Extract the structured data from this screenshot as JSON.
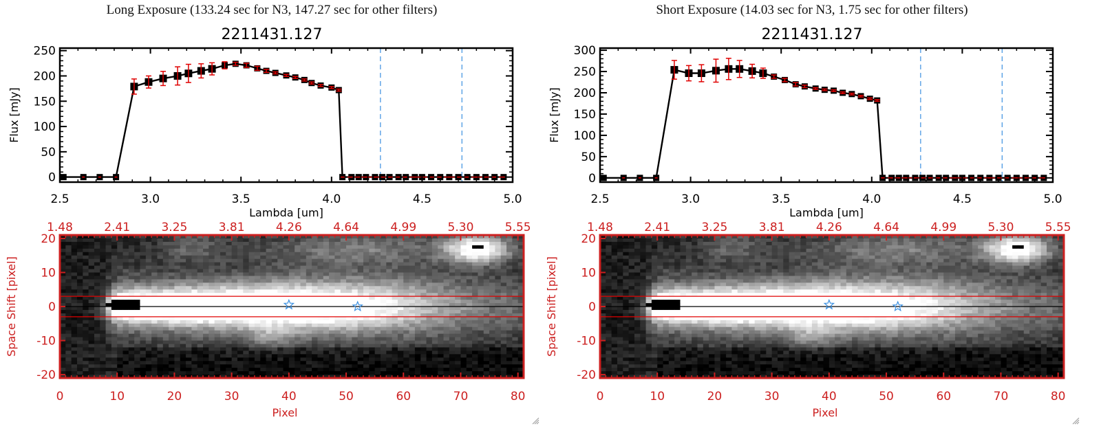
{
  "colors": {
    "axis": "#000000",
    "error_bar": "#e00000",
    "marker": "#000000",
    "filter_line": "#3a8fe0",
    "zero_line": "#e00000",
    "image_axis": "#cc2020",
    "aperture": "#e00000",
    "star": "#3a8fe0"
  },
  "chart_data": [
    {
      "type": "line",
      "panel": "left",
      "title": "Long Exposure (133.24 sec for N3, 147.27 sec for other filters)",
      "subtitle": "2211431.127",
      "xlabel": "Lambda [um]",
      "ylabel": "Flux [mJy]",
      "xlim": [
        2.5,
        5.0
      ],
      "ylim": [
        -10,
        255
      ],
      "xticks": [
        "2.5",
        "3.0",
        "3.5",
        "4.0",
        "4.5",
        "5.0"
      ],
      "xtick_values": [
        2.5,
        3.0,
        3.5,
        4.0,
        4.5,
        5.0
      ],
      "yticks": [
        "0",
        "50",
        "100",
        "150",
        "200",
        "250"
      ],
      "ytick_values": [
        0,
        50,
        100,
        150,
        200,
        250
      ],
      "filter_lines": [
        4.27,
        4.72
      ],
      "zero_line": 0,
      "series": [
        {
          "name": "flux",
          "x": [
            2.52,
            2.63,
            2.72,
            2.81,
            2.91,
            2.99,
            3.07,
            3.15,
            3.21,
            3.28,
            3.34,
            3.41,
            3.47,
            3.53,
            3.59,
            3.64,
            3.69,
            3.75,
            3.8,
            3.85,
            3.89,
            3.94,
            4.0,
            4.04,
            4.06,
            4.11,
            4.15,
            4.19,
            4.24,
            4.28,
            4.32,
            4.37,
            4.41,
            4.46,
            4.5,
            4.55,
            4.6,
            4.65,
            4.7,
            4.75,
            4.8,
            4.85,
            4.9,
            4.95
          ],
          "y": [
            0,
            0,
            0,
            0,
            179,
            188,
            195,
            200,
            205,
            210,
            214,
            221,
            224,
            221,
            215,
            210,
            206,
            201,
            197,
            192,
            186,
            181,
            177,
            172,
            0,
            0,
            0,
            0,
            0,
            0,
            0,
            0,
            0,
            0,
            0,
            0,
            0,
            0,
            0,
            0,
            0,
            0,
            0,
            0
          ],
          "err": [
            0,
            0,
            0,
            0,
            15,
            12,
            14,
            18,
            18,
            14,
            12,
            7,
            3,
            4,
            4,
            3,
            2,
            2,
            2,
            2,
            2,
            2,
            2,
            2,
            0,
            0,
            0,
            0,
            0,
            0,
            0,
            0,
            0,
            0,
            0,
            0,
            0,
            0,
            0,
            0,
            0,
            0,
            0,
            0
          ]
        }
      ]
    },
    {
      "type": "line",
      "panel": "right",
      "title": "Short Exposure (14.03 sec for N3, 1.75 sec for other filters)",
      "subtitle": "2211431.127",
      "xlabel": "Lambda [um]",
      "ylabel": "Flux [mJy]",
      "xlim": [
        2.5,
        5.0
      ],
      "ylim": [
        -10,
        305
      ],
      "xticks": [
        "2.5",
        "3.0",
        "3.5",
        "4.0",
        "4.5",
        "5.0"
      ],
      "xtick_values": [
        2.5,
        3.0,
        3.5,
        4.0,
        4.5,
        5.0
      ],
      "yticks": [
        "0",
        "50",
        "100",
        "150",
        "200",
        "250",
        "300"
      ],
      "ytick_values": [
        0,
        50,
        100,
        150,
        200,
        250,
        300
      ],
      "filter_lines": [
        4.27,
        4.72
      ],
      "zero_line": 0,
      "series": [
        {
          "name": "flux",
          "x": [
            2.52,
            2.63,
            2.72,
            2.81,
            2.91,
            2.99,
            3.06,
            3.14,
            3.21,
            3.27,
            3.34,
            3.4,
            3.46,
            3.52,
            3.58,
            3.63,
            3.69,
            3.74,
            3.79,
            3.84,
            3.89,
            3.94,
            3.99,
            4.03,
            4.06,
            4.11,
            4.15,
            4.19,
            4.24,
            4.28,
            4.32,
            4.37,
            4.41,
            4.46,
            4.5,
            4.55,
            4.6,
            4.65,
            4.7,
            4.75,
            4.8,
            4.85,
            4.9,
            4.95
          ],
          "y": [
            0,
            0,
            0,
            0,
            254,
            246,
            246,
            252,
            256,
            256,
            251,
            246,
            238,
            230,
            220,
            215,
            210,
            207,
            205,
            200,
            197,
            192,
            186,
            182,
            0,
            0,
            0,
            0,
            0,
            0,
            0,
            0,
            0,
            0,
            0,
            0,
            0,
            0,
            0,
            0,
            0,
            0,
            0,
            0
          ],
          "err": [
            0,
            0,
            0,
            0,
            22,
            18,
            20,
            27,
            25,
            20,
            16,
            12,
            4,
            4,
            4,
            3,
            2,
            2,
            2,
            2,
            2,
            2,
            2,
            2,
            0,
            0,
            0,
            0,
            0,
            0,
            0,
            0,
            0,
            0,
            0,
            0,
            0,
            0,
            0,
            0,
            0,
            0,
            0,
            0
          ]
        }
      ]
    },
    {
      "type": "heatmap",
      "panel": "left",
      "xlabel": "Pixel",
      "ylabel": "Space Shift [pixel]",
      "xlim": [
        0,
        81
      ],
      "ylim": [
        -21,
        21
      ],
      "xticks": [
        "0",
        "10",
        "20",
        "30",
        "40",
        "50",
        "60",
        "70",
        "80"
      ],
      "xtick_values": [
        0,
        10,
        20,
        30,
        40,
        50,
        60,
        70,
        80
      ],
      "yticks": [
        "-20",
        "-10",
        "0",
        "10",
        "20"
      ],
      "ytick_values": [
        -20,
        -10,
        0,
        10,
        20
      ],
      "top_ticks": [
        "1.48",
        "2.41",
        "3.25",
        "3.81",
        "4.26",
        "4.64",
        "4.99",
        "5.30",
        "5.55"
      ],
      "aperture": [
        -3,
        3
      ],
      "center_line": 0,
      "stars": [
        {
          "x": 40,
          "y": 0.5
        },
        {
          "x": 52,
          "y": 0
        }
      ]
    },
    {
      "type": "heatmap",
      "panel": "right",
      "xlabel": "Pixel",
      "ylabel": "Space Shift [pixel]",
      "xlim": [
        0,
        81
      ],
      "ylim": [
        -21,
        21
      ],
      "xticks": [
        "0",
        "10",
        "20",
        "30",
        "40",
        "50",
        "60",
        "70",
        "80"
      ],
      "xtick_values": [
        0,
        10,
        20,
        30,
        40,
        50,
        60,
        70,
        80
      ],
      "yticks": [
        "-20",
        "-10",
        "0",
        "10",
        "20"
      ],
      "ytick_values": [
        -20,
        -10,
        0,
        10,
        20
      ],
      "top_ticks": [
        "1.48",
        "2.41",
        "3.25",
        "3.81",
        "4.26",
        "4.64",
        "4.99",
        "5.30",
        "5.55"
      ],
      "aperture": [
        -3,
        3
      ],
      "center_line": 0,
      "stars": [
        {
          "x": 40,
          "y": 0.5
        },
        {
          "x": 52,
          "y": 0
        }
      ]
    }
  ]
}
